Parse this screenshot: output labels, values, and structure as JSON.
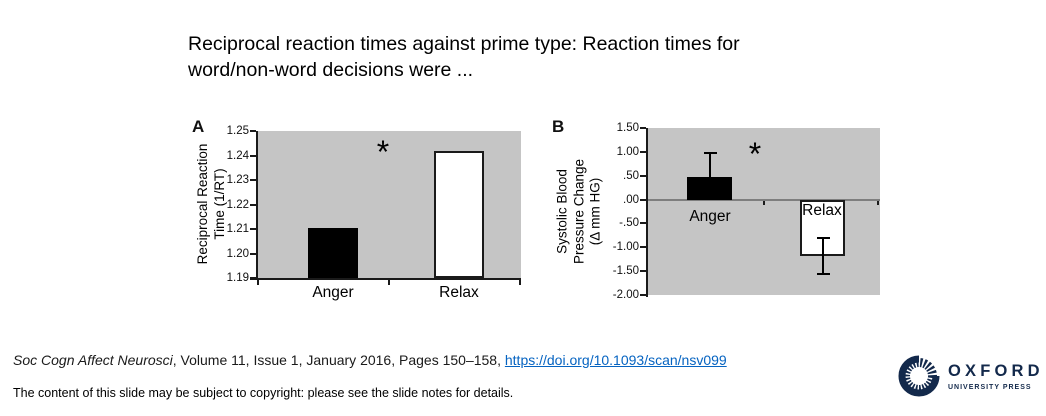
{
  "slide": {
    "title_lines": [
      "Reciprocal reaction times against prime type: Reaction times for",
      "word/non-word decisions were ..."
    ]
  },
  "chart_data": [
    {
      "panel_label": "A",
      "type": "bar",
      "ylabel_lines": [
        "Reciprocal Reaction",
        "Time (1/RT)"
      ],
      "categories": [
        "Anger",
        "Relax"
      ],
      "values": [
        1.2105,
        1.242
      ],
      "bar_styles": [
        {
          "fill": "#000000",
          "border": "#000000"
        },
        {
          "fill": "#ffffff",
          "border": "#1a1a1a"
        }
      ],
      "ylim": [
        1.19,
        1.25
      ],
      "ytick_values": [
        1.25,
        1.24,
        1.23,
        1.22,
        1.21,
        1.2,
        1.19
      ],
      "ytick_labels": [
        "1.25",
        "1.24",
        "1.23",
        "1.22",
        "1.21",
        "1.20",
        "1.19"
      ],
      "significance_marker": "*",
      "plot_background": "#c5c5c5",
      "zero_line": false,
      "legend": "none",
      "grid": "off"
    },
    {
      "panel_label": "B",
      "type": "bar",
      "ylabel_lines": [
        "Systolic Blood",
        "Pressure Change",
        "(Δ mm HG)"
      ],
      "categories": [
        "Anger",
        "Relax"
      ],
      "values": [
        0.48,
        -1.18
      ],
      "error_bars": [
        {
          "upper": 0.97,
          "lower": 0.48,
          "cap_top": true,
          "cap_bottom": false
        },
        {
          "upper": -0.8,
          "lower": -1.55,
          "cap_top": true,
          "cap_bottom": true
        }
      ],
      "bar_styles": [
        {
          "fill": "#000000",
          "border": "#000000"
        },
        {
          "fill": "#ffffff",
          "border": "#1a1a1a"
        }
      ],
      "ylim": [
        -2.0,
        1.5
      ],
      "ytick_values": [
        1.5,
        1.0,
        0.5,
        0.0,
        -0.5,
        -1.0,
        -1.5,
        -2.0
      ],
      "ytick_labels": [
        "1.50",
        "1.00",
        ".50",
        ".00",
        "-.50",
        "-1.00",
        "-1.50",
        "-2.00"
      ],
      "significance_marker": "*",
      "plot_background": "#c5c5c5",
      "zero_line": true,
      "legend": "none",
      "grid": "off"
    }
  ],
  "footer": {
    "journal": "Soc Cogn Affect Neurosci",
    "citation_rest": ", Volume 11, Issue 1, January 2016, Pages 150–158, ",
    "link": "https://doi.org/10.1093/scan/nsv099",
    "copyright": "The content of this slide may be subject to copyright: please see the slide notes for details."
  },
  "logo": {
    "name": "OXFORD",
    "subtitle": "UNIVERSITY PRESS",
    "color": "#13294b"
  }
}
